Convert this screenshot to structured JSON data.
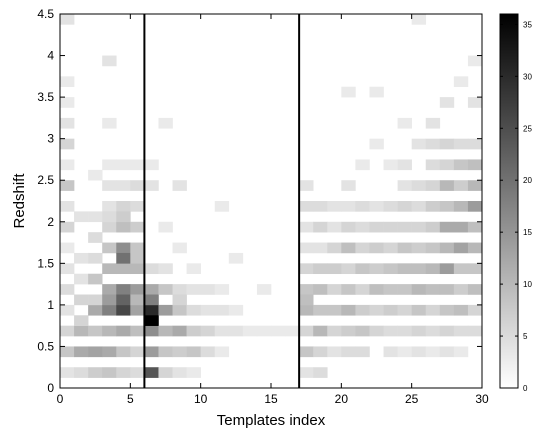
{
  "chart_data": {
    "type": "heatmap",
    "title": "",
    "xlabel": "Templates index",
    "ylabel": "Redshift",
    "xlim": [
      0,
      30
    ],
    "ylim": [
      0,
      4.5
    ],
    "x_ticks": [
      "0",
      "5",
      "10",
      "15",
      "20",
      "25",
      "30"
    ],
    "y_ticks": [
      "0",
      "0.5",
      "1",
      "1.5",
      "2",
      "2.5",
      "3",
      "3.5",
      "4",
      "4.5"
    ],
    "colorbar": {
      "min": 0,
      "max": 36,
      "ticks": [
        "0",
        "5",
        "10",
        "15",
        "20",
        "25",
        "30",
        "35"
      ],
      "colormap": "white-to-black"
    },
    "vertical_lines": [
      6,
      17
    ],
    "x_bin_width": 1,
    "y_bin_width": 0.125,
    "cells": [
      [
        0,
        4.375,
        4
      ],
      [
        0,
        3.625,
        3
      ],
      [
        0,
        3.375,
        3
      ],
      [
        0,
        3.125,
        4
      ],
      [
        0,
        2.875,
        6
      ],
      [
        0,
        2.625,
        3
      ],
      [
        0,
        2.375,
        8
      ],
      [
        0,
        2.125,
        4
      ],
      [
        0,
        1.875,
        6
      ],
      [
        0,
        1.625,
        3
      ],
      [
        0,
        1.375,
        4
      ],
      [
        0,
        1.125,
        5
      ],
      [
        0,
        0.875,
        4
      ],
      [
        0,
        0.625,
        6
      ],
      [
        0,
        0.375,
        8
      ],
      [
        0,
        0.125,
        4
      ],
      [
        1,
        2.0,
        4
      ],
      [
        1,
        1.5,
        4
      ],
      [
        1,
        1.0,
        6
      ],
      [
        1,
        0.625,
        10
      ],
      [
        1,
        0.375,
        12
      ],
      [
        1,
        0.125,
        5
      ],
      [
        1,
        0.75,
        6
      ],
      [
        1,
        1.25,
        4
      ],
      [
        2,
        2.5,
        3
      ],
      [
        2,
        2.0,
        4
      ],
      [
        2,
        1.75,
        5
      ],
      [
        2,
        1.25,
        8
      ],
      [
        2,
        0.875,
        12
      ],
      [
        2,
        0.625,
        8
      ],
      [
        2,
        0.375,
        13
      ],
      [
        2,
        0.125,
        7
      ],
      [
        2,
        1.0,
        6
      ],
      [
        2,
        1.5,
        5
      ],
      [
        3,
        3.875,
        4
      ],
      [
        3,
        3.125,
        3
      ],
      [
        3,
        2.625,
        3
      ],
      [
        3,
        2.375,
        4
      ],
      [
        3,
        2.125,
        4
      ],
      [
        3,
        1.875,
        6
      ],
      [
        3,
        1.625,
        8
      ],
      [
        3,
        1.375,
        10
      ],
      [
        3,
        1.125,
        12
      ],
      [
        3,
        0.875,
        18
      ],
      [
        3,
        0.625,
        10
      ],
      [
        3,
        0.375,
        12
      ],
      [
        3,
        0.125,
        8
      ],
      [
        3,
        1.0,
        14
      ],
      [
        3,
        2.0,
        5
      ],
      [
        4,
        2.625,
        3
      ],
      [
        4,
        2.375,
        4
      ],
      [
        4,
        2.125,
        6
      ],
      [
        4,
        1.875,
        9
      ],
      [
        4,
        1.625,
        16
      ],
      [
        4,
        1.375,
        10
      ],
      [
        4,
        1.125,
        18
      ],
      [
        4,
        0.875,
        26
      ],
      [
        4,
        0.625,
        12
      ],
      [
        4,
        0.375,
        8
      ],
      [
        4,
        0.125,
        6
      ],
      [
        4,
        1.5,
        20
      ],
      [
        4,
        1.0,
        22
      ],
      [
        4,
        2.0,
        7
      ],
      [
        5,
        2.625,
        3
      ],
      [
        5,
        2.375,
        5
      ],
      [
        5,
        2.125,
        5
      ],
      [
        5,
        1.875,
        7
      ],
      [
        5,
        1.625,
        8
      ],
      [
        5,
        1.375,
        10
      ],
      [
        5,
        1.125,
        14
      ],
      [
        5,
        0.875,
        13
      ],
      [
        5,
        0.625,
        9
      ],
      [
        5,
        0.375,
        6
      ],
      [
        5,
        0.125,
        5
      ],
      [
        5,
        1.0,
        10
      ],
      [
        5,
        1.5,
        8
      ],
      [
        6,
        2.625,
        3
      ],
      [
        6,
        2.375,
        4
      ],
      [
        6,
        1.375,
        5
      ],
      [
        6,
        1.125,
        12
      ],
      [
        6,
        0.875,
        30
      ],
      [
        6,
        0.625,
        16
      ],
      [
        6,
        0.375,
        14
      ],
      [
        6,
        0.125,
        24
      ],
      [
        6,
        1.0,
        18
      ],
      [
        6,
        0.75,
        36
      ],
      [
        7,
        3.125,
        3
      ],
      [
        7,
        1.875,
        3
      ],
      [
        7,
        1.375,
        4
      ],
      [
        7,
        1.125,
        8
      ],
      [
        7,
        0.875,
        14
      ],
      [
        7,
        0.625,
        10
      ],
      [
        7,
        0.375,
        8
      ],
      [
        7,
        0.125,
        6
      ],
      [
        8,
        2.375,
        4
      ],
      [
        8,
        1.625,
        3
      ],
      [
        8,
        1.125,
        5
      ],
      [
        8,
        0.875,
        8
      ],
      [
        8,
        0.625,
        12
      ],
      [
        8,
        0.375,
        7
      ],
      [
        8,
        0.125,
        4
      ],
      [
        8,
        1.0,
        6
      ],
      [
        9,
        1.375,
        3
      ],
      [
        9,
        1.125,
        4
      ],
      [
        9,
        0.875,
        5
      ],
      [
        9,
        0.625,
        7
      ],
      [
        9,
        0.375,
        8
      ],
      [
        9,
        0.125,
        3
      ],
      [
        10,
        1.125,
        4
      ],
      [
        10,
        0.875,
        4
      ],
      [
        10,
        0.625,
        6
      ],
      [
        10,
        0.375,
        5
      ],
      [
        11,
        2.125,
        3
      ],
      [
        11,
        1.125,
        3
      ],
      [
        11,
        0.875,
        4
      ],
      [
        11,
        0.625,
        4
      ],
      [
        11,
        0.375,
        3
      ],
      [
        12,
        1.5,
        3
      ],
      [
        12,
        0.875,
        3
      ],
      [
        12,
        0.625,
        4
      ],
      [
        13,
        0.625,
        3
      ],
      [
        14,
        1.125,
        3
      ],
      [
        14,
        0.625,
        3
      ],
      [
        15,
        0.625,
        3
      ],
      [
        16,
        0.625,
        3
      ],
      [
        17,
        2.375,
        4
      ],
      [
        17,
        2.125,
        5
      ],
      [
        17,
        1.875,
        4
      ],
      [
        17,
        1.625,
        4
      ],
      [
        17,
        1.375,
        6
      ],
      [
        17,
        1.125,
        8
      ],
      [
        17,
        0.875,
        10
      ],
      [
        17,
        0.625,
        6
      ],
      [
        17,
        0.375,
        8
      ],
      [
        17,
        0.125,
        4
      ],
      [
        17,
        1.0,
        9
      ],
      [
        18,
        2.125,
        5
      ],
      [
        18,
        1.875,
        6
      ],
      [
        18,
        1.625,
        4
      ],
      [
        18,
        1.375,
        7
      ],
      [
        18,
        1.125,
        9
      ],
      [
        18,
        0.875,
        8
      ],
      [
        18,
        0.625,
        10
      ],
      [
        18,
        0.375,
        6
      ],
      [
        18,
        0.125,
        5
      ],
      [
        19,
        2.125,
        4
      ],
      [
        19,
        1.875,
        4
      ],
      [
        19,
        1.625,
        6
      ],
      [
        19,
        1.375,
        7
      ],
      [
        19,
        1.125,
        6
      ],
      [
        19,
        0.875,
        8
      ],
      [
        19,
        0.625,
        6
      ],
      [
        19,
        0.375,
        4
      ],
      [
        20,
        3.5,
        3
      ],
      [
        20,
        2.375,
        4
      ],
      [
        20,
        2.125,
        4
      ],
      [
        20,
        1.875,
        6
      ],
      [
        20,
        1.625,
        9
      ],
      [
        20,
        1.375,
        6
      ],
      [
        20,
        1.125,
        8
      ],
      [
        20,
        0.875,
        10
      ],
      [
        20,
        0.625,
        7
      ],
      [
        20,
        0.375,
        5
      ],
      [
        21,
        2.625,
        3
      ],
      [
        21,
        2.125,
        5
      ],
      [
        21,
        1.875,
        5
      ],
      [
        21,
        1.625,
        6
      ],
      [
        21,
        1.375,
        8
      ],
      [
        21,
        1.125,
        6
      ],
      [
        21,
        0.875,
        7
      ],
      [
        21,
        0.625,
        8
      ],
      [
        21,
        0.375,
        5
      ],
      [
        22,
        3.5,
        3
      ],
      [
        22,
        2.875,
        3
      ],
      [
        22,
        2.125,
        4
      ],
      [
        22,
        1.875,
        6
      ],
      [
        22,
        1.625,
        7
      ],
      [
        22,
        1.375,
        7
      ],
      [
        22,
        1.125,
        9
      ],
      [
        22,
        0.875,
        6
      ],
      [
        22,
        0.625,
        6
      ],
      [
        23,
        2.625,
        3
      ],
      [
        23,
        2.125,
        5
      ],
      [
        23,
        1.875,
        6
      ],
      [
        23,
        1.625,
        6
      ],
      [
        23,
        1.375,
        8
      ],
      [
        23,
        1.125,
        8
      ],
      [
        23,
        0.875,
        7
      ],
      [
        23,
        0.625,
        5
      ],
      [
        23,
        0.375,
        4
      ],
      [
        24,
        3.125,
        3
      ],
      [
        24,
        2.625,
        4
      ],
      [
        24,
        2.375,
        4
      ],
      [
        24,
        2.125,
        6
      ],
      [
        24,
        1.875,
        6
      ],
      [
        24,
        1.625,
        8
      ],
      [
        24,
        1.375,
        9
      ],
      [
        24,
        1.125,
        8
      ],
      [
        24,
        0.875,
        6
      ],
      [
        24,
        0.625,
        5
      ],
      [
        24,
        0.375,
        3
      ],
      [
        25,
        4.375,
        3
      ],
      [
        25,
        2.875,
        4
      ],
      [
        25,
        2.375,
        5
      ],
      [
        25,
        2.125,
        5
      ],
      [
        25,
        1.875,
        6
      ],
      [
        25,
        1.625,
        7
      ],
      [
        25,
        1.375,
        9
      ],
      [
        25,
        1.125,
        10
      ],
      [
        25,
        0.875,
        8
      ],
      [
        25,
        0.625,
        6
      ],
      [
        25,
        0.375,
        4
      ],
      [
        26,
        3.125,
        4
      ],
      [
        26,
        2.875,
        5
      ],
      [
        26,
        2.625,
        5
      ],
      [
        26,
        2.375,
        6
      ],
      [
        26,
        2.125,
        7
      ],
      [
        26,
        1.875,
        7
      ],
      [
        26,
        1.625,
        8
      ],
      [
        26,
        1.375,
        10
      ],
      [
        26,
        1.125,
        9
      ],
      [
        26,
        0.875,
        6
      ],
      [
        26,
        0.625,
        5
      ],
      [
        26,
        0.375,
        3
      ],
      [
        27,
        3.375,
        4
      ],
      [
        27,
        2.875,
        6
      ],
      [
        27,
        2.625,
        6
      ],
      [
        27,
        2.375,
        10
      ],
      [
        27,
        2.125,
        8
      ],
      [
        27,
        1.875,
        12
      ],
      [
        27,
        1.625,
        10
      ],
      [
        27,
        1.375,
        14
      ],
      [
        27,
        1.125,
        9
      ],
      [
        27,
        0.875,
        8
      ],
      [
        27,
        0.625,
        6
      ],
      [
        27,
        0.375,
        4
      ],
      [
        28,
        3.625,
        3
      ],
      [
        28,
        2.875,
        5
      ],
      [
        28,
        2.625,
        8
      ],
      [
        28,
        2.375,
        7
      ],
      [
        28,
        2.125,
        10
      ],
      [
        28,
        1.875,
        12
      ],
      [
        28,
        1.625,
        13
      ],
      [
        28,
        1.375,
        8
      ],
      [
        28,
        1.125,
        7
      ],
      [
        28,
        0.875,
        9
      ],
      [
        28,
        0.625,
        5
      ],
      [
        28,
        0.375,
        3
      ],
      [
        29,
        3.875,
        3
      ],
      [
        29,
        3.375,
        4
      ],
      [
        29,
        2.875,
        5
      ],
      [
        29,
        2.625,
        9
      ],
      [
        29,
        2.375,
        10
      ],
      [
        29,
        2.125,
        14
      ],
      [
        29,
        1.875,
        9
      ],
      [
        29,
        1.625,
        10
      ],
      [
        29,
        1.375,
        8
      ],
      [
        29,
        1.125,
        9
      ],
      [
        29,
        0.875,
        6
      ],
      [
        29,
        0.625,
        5
      ]
    ]
  }
}
